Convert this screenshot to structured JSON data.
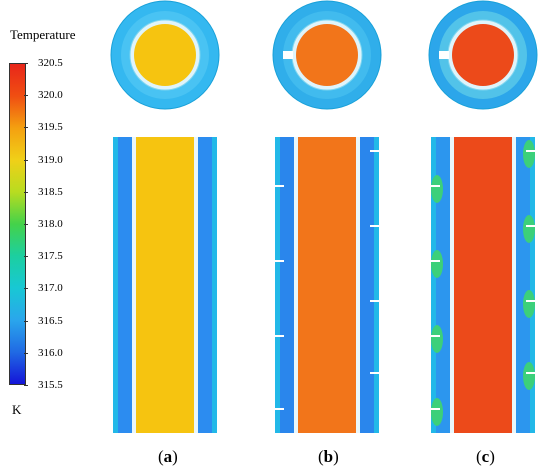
{
  "colorbar": {
    "title": "Temperature",
    "unit": "K",
    "ticks": [
      "320.5",
      "320.0",
      "319.5",
      "319.0",
      "318.5",
      "318.0",
      "317.5",
      "317.0",
      "316.5",
      "316.0",
      "315.5"
    ],
    "colors": [
      "#e8261a",
      "#f04e12",
      "#f4a010",
      "#f0d018",
      "#b8dc20",
      "#44d24a",
      "#1ccfa0",
      "#18c8d4",
      "#2aa6ec",
      "#206ae4",
      "#1414d8"
    ]
  },
  "panels": [
    {
      "label": "a",
      "core_color": "#f6c410",
      "wall_color": "#2c8cf0",
      "ring_color": "#34b8f0",
      "gap_color": "#52c8f4"
    },
    {
      "label": "b",
      "core_color": "#f2751a",
      "wall_color": "#2a86ec",
      "ring_color": "#30aeea",
      "gap_color": "#48c0f0"
    },
    {
      "label": "c",
      "core_color": "#ec4a1a",
      "wall_color": "#2c96ee",
      "ring_color": "#2ca6ea",
      "gap_color": "#62d0e8"
    }
  ]
}
